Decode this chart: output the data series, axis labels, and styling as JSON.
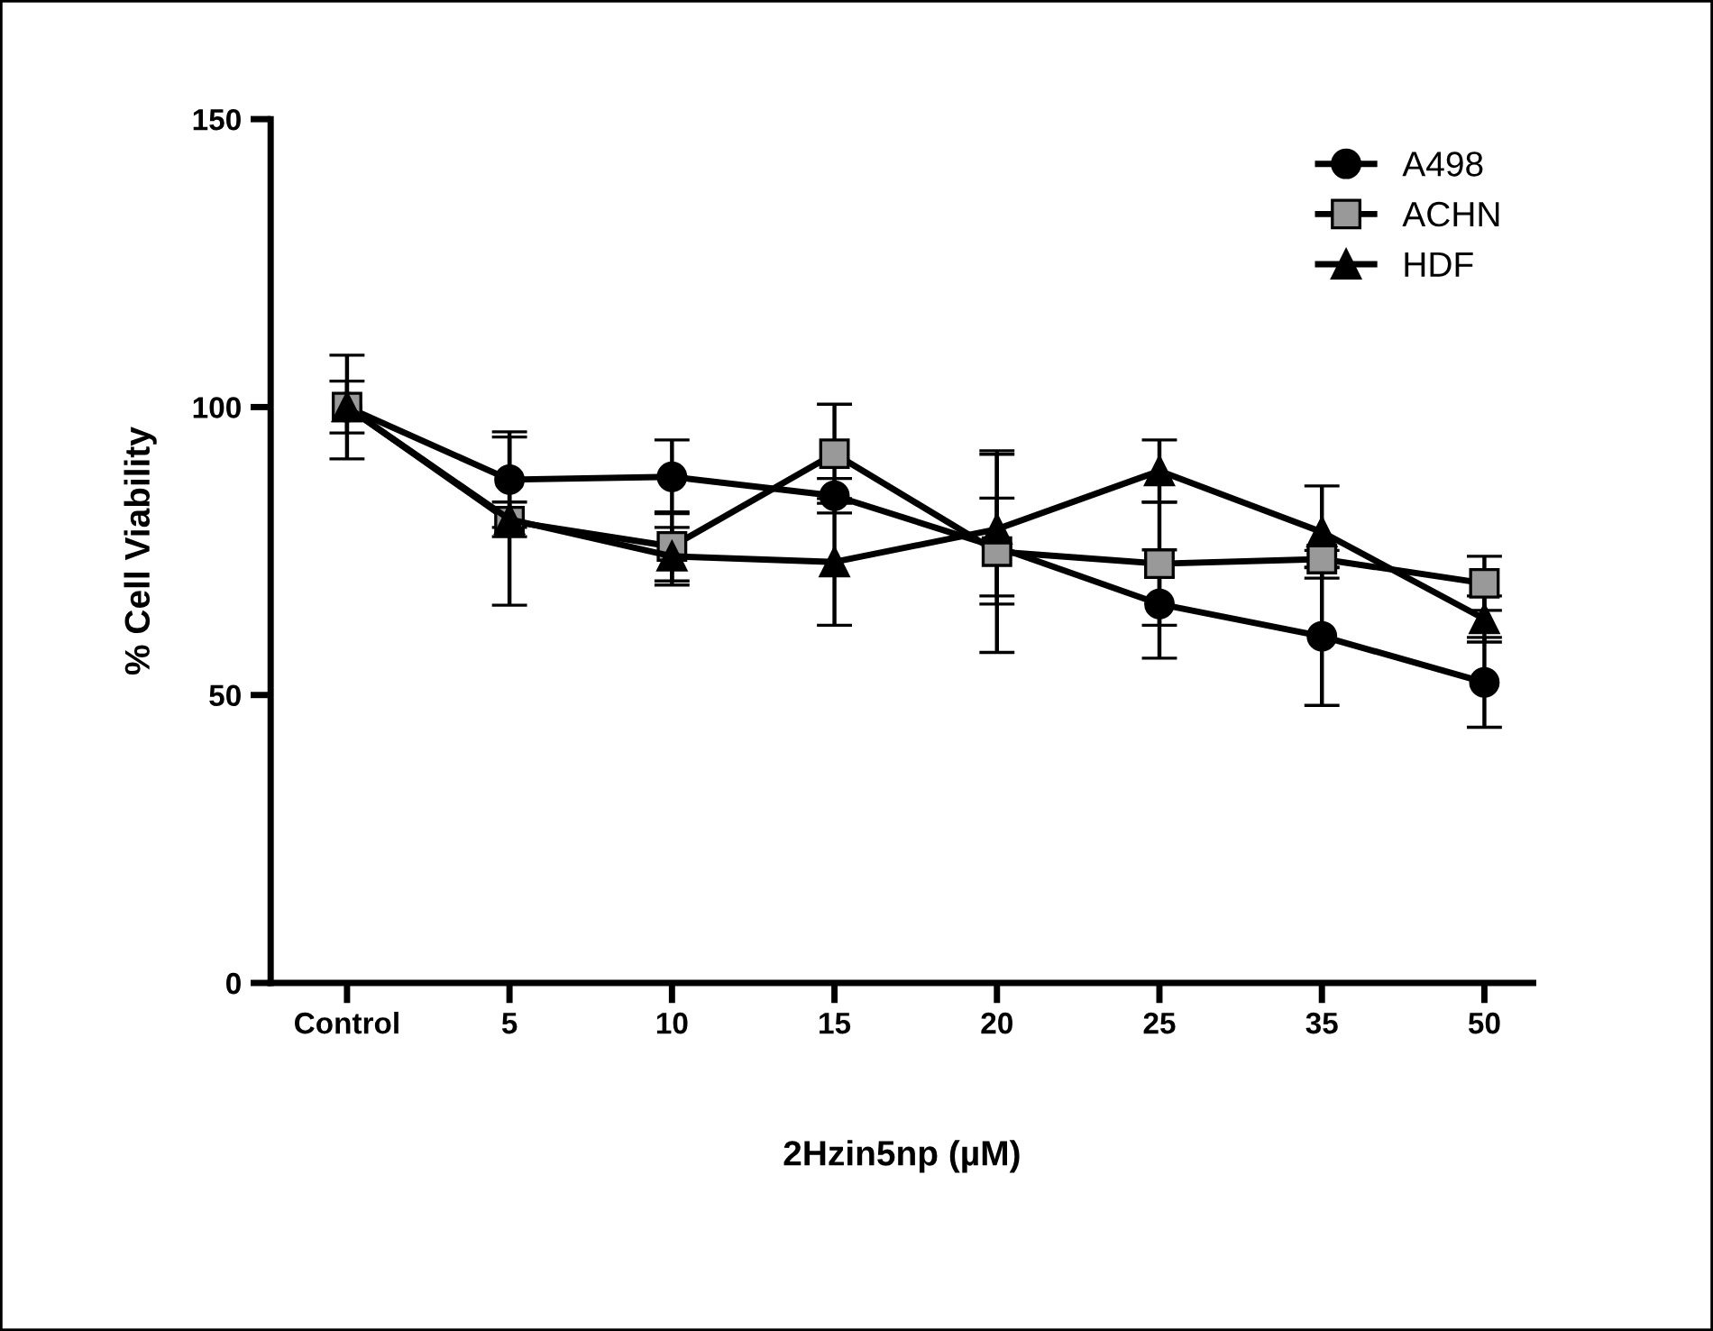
{
  "chart_data": {
    "type": "line",
    "xlabel": "2Hzin5np (µM)",
    "ylabel": "% Cell Viability",
    "categories": [
      "Control",
      "5",
      "10",
      "15",
      "20",
      "25",
      "35",
      "50"
    ],
    "series": [
      {
        "name": "A498",
        "color": "#000000",
        "marker": "circle",
        "values": [
          100,
          87.4,
          87.9,
          84.6,
          75.7,
          65.8,
          60.2,
          52.2
        ],
        "errors": [
          9,
          8.3,
          6.4,
          3,
          8.5,
          9.4,
          12,
          7.8
        ]
      },
      {
        "name": "ACHN",
        "color": "#999999",
        "marker": "square",
        "values": [
          100,
          80.2,
          75.8,
          91.9,
          74.9,
          72.8,
          73.6,
          69.4
        ],
        "errors": [
          4.5,
          14.6,
          6,
          8.6,
          17.5,
          10.7,
          1.5,
          4.7
        ]
      },
      {
        "name": "HDF",
        "color": "#000000",
        "marker": "triangle",
        "values": [
          100,
          80.5,
          74.1,
          73.1,
          78.8,
          88.9,
          78.3,
          63.2
        ],
        "errors": [
          null,
          3,
          5,
          11,
          13,
          5.4,
          8,
          4
        ]
      }
    ],
    "ylim": [
      0,
      150
    ],
    "yticks": [
      0,
      50,
      100,
      150
    ],
    "grid": false,
    "legend": "top right"
  }
}
